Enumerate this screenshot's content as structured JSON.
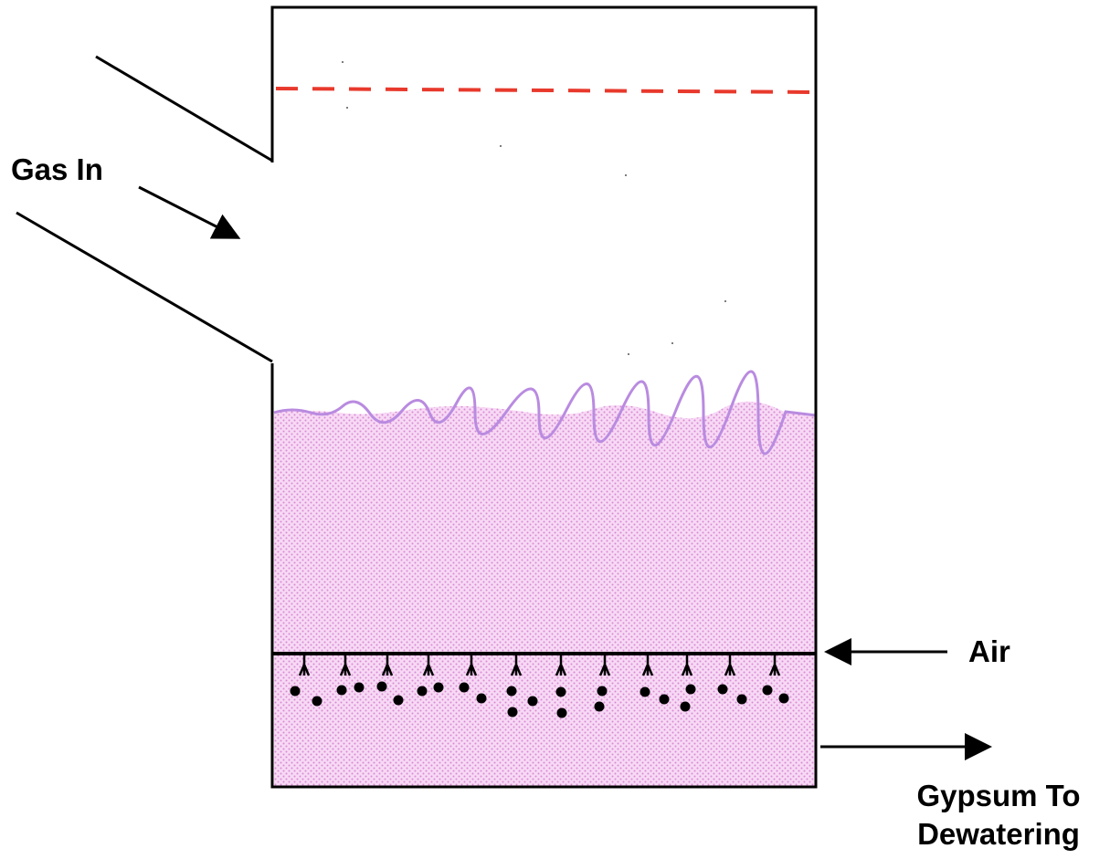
{
  "labels": {
    "gas_in": "Gas In",
    "air": "Air",
    "gypsum_line1": "Gypsum To",
    "gypsum_line2": "Dewatering"
  },
  "colors": {
    "outline": "#000000",
    "mist_eliminator": "#e8392c",
    "slurry_fill": "#f7d9f5",
    "slurry_dots": "#d98ad2",
    "slurry_surface": "#b98be0",
    "particles": "#000000"
  },
  "sparger": {
    "nozzle_count": 12
  }
}
